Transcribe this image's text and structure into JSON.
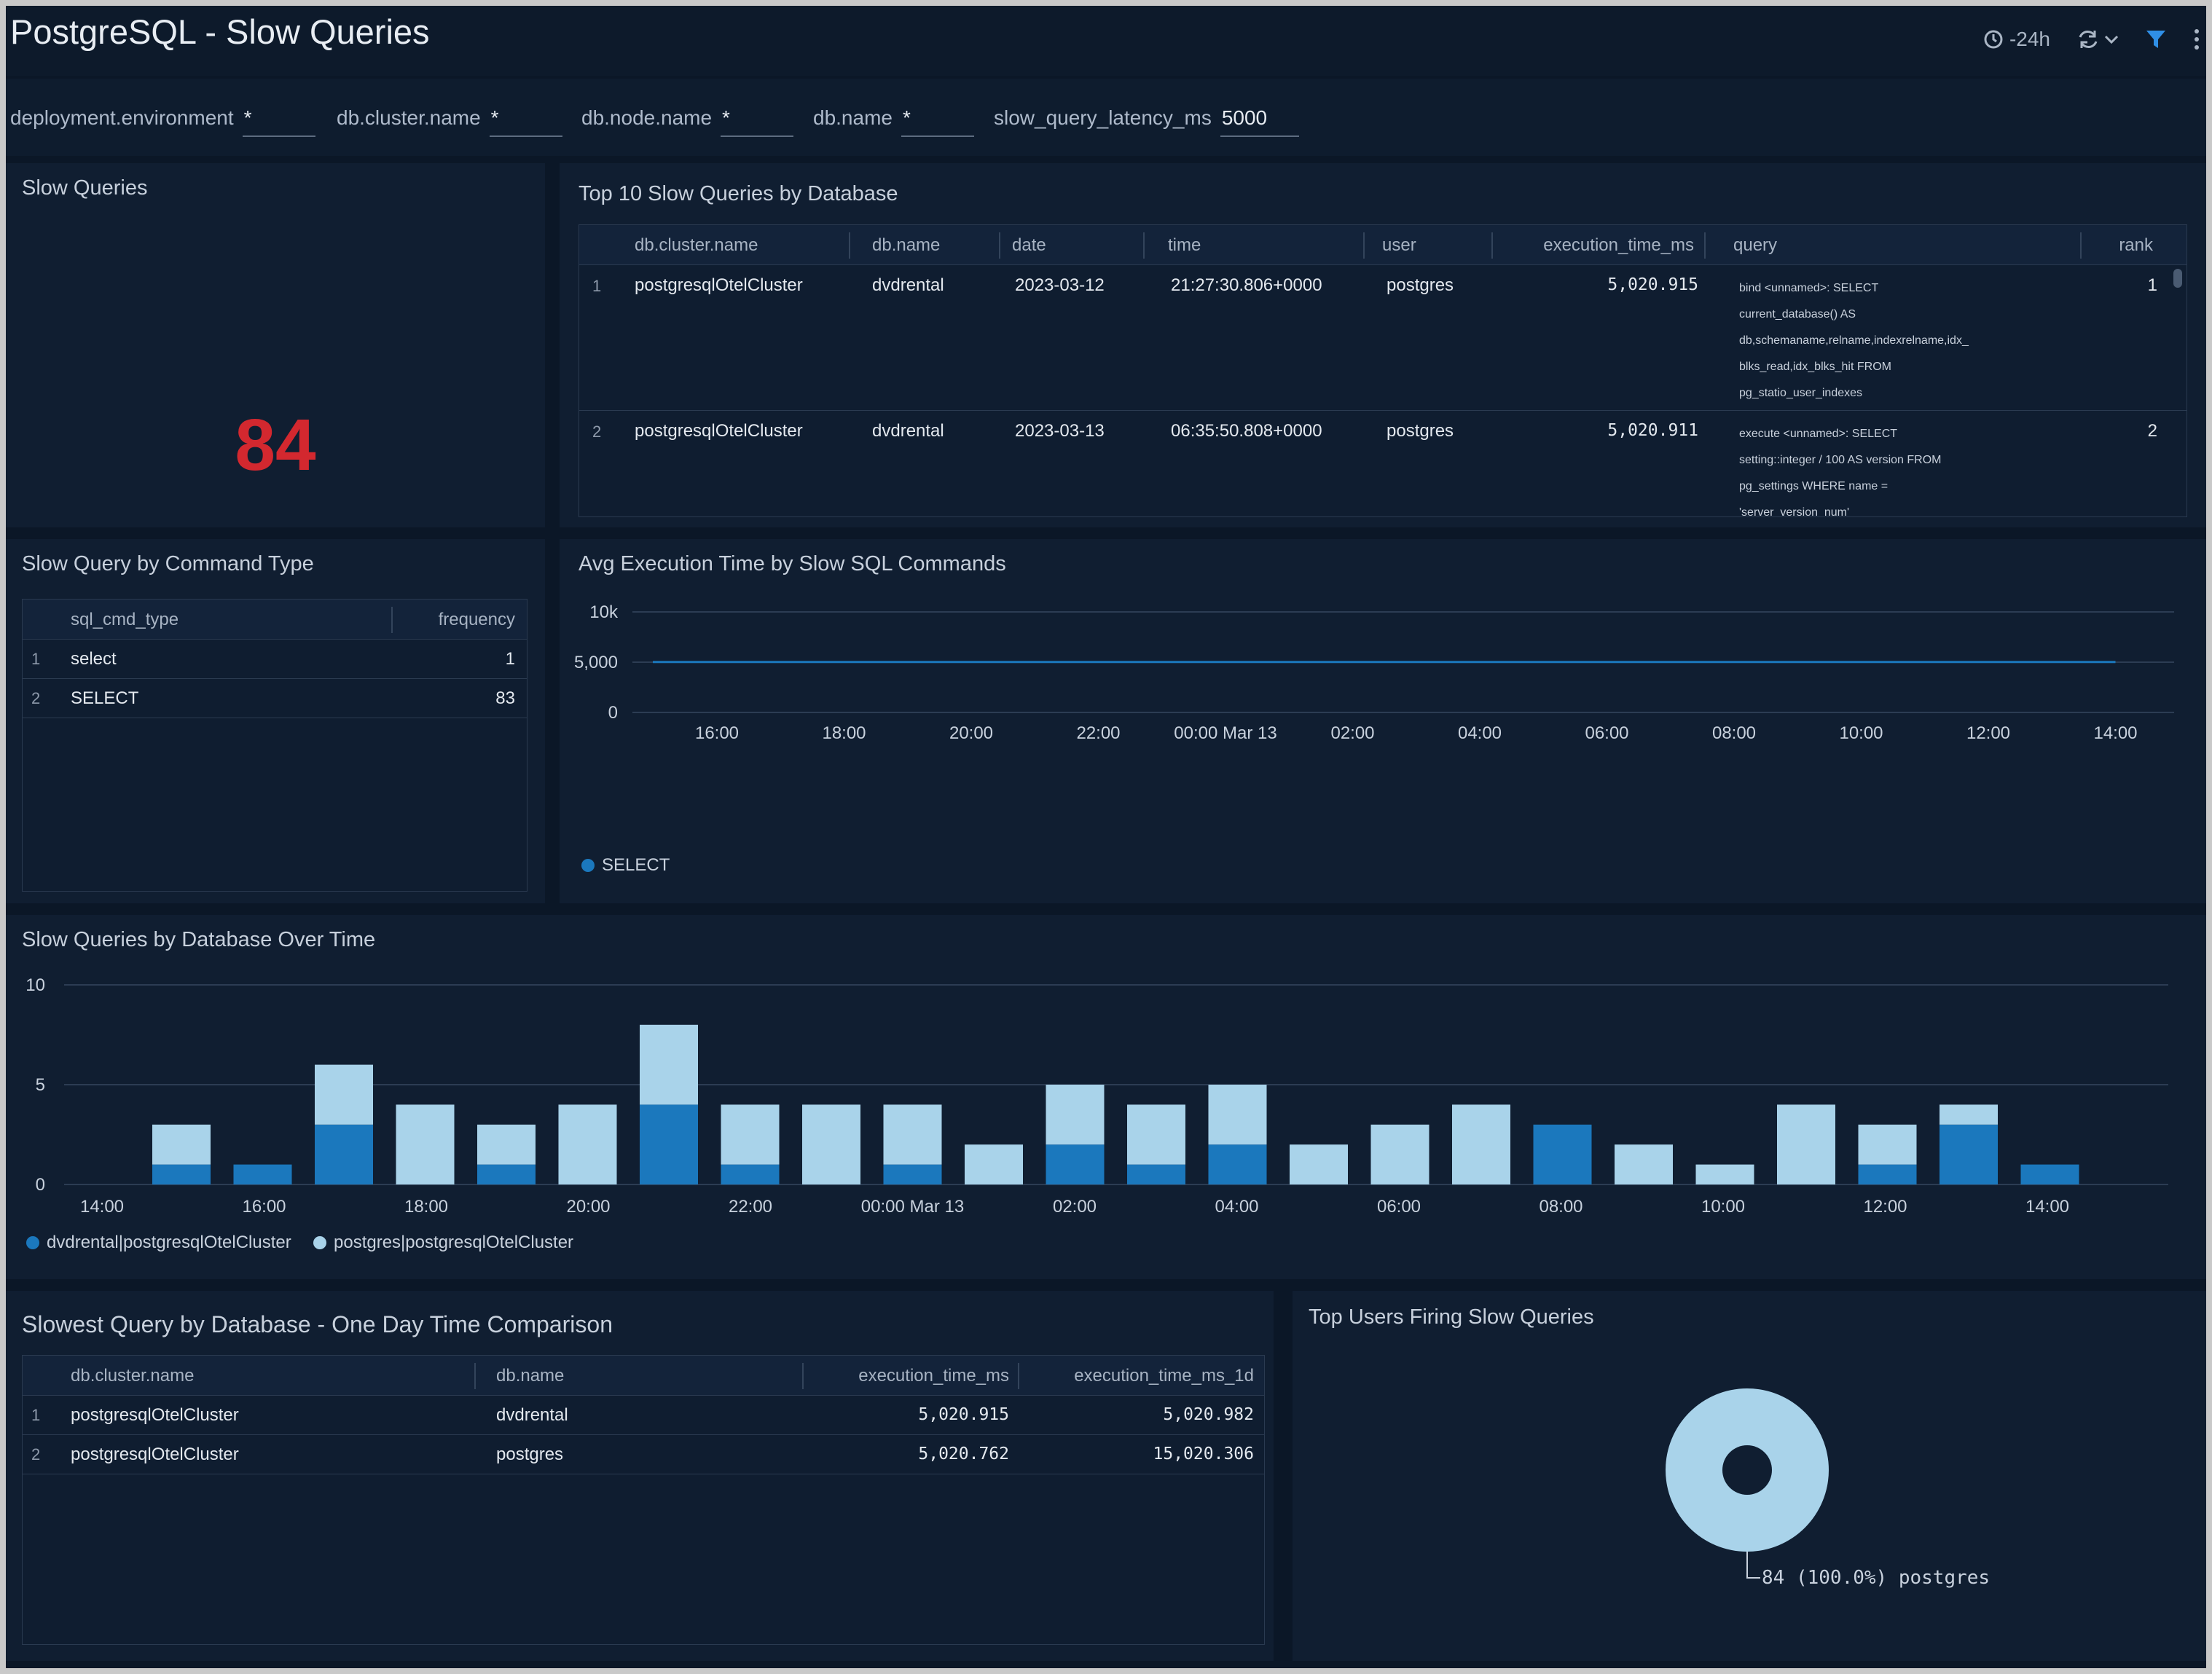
{
  "dashboard": {
    "title": "PostgreSQL - Slow Queries",
    "time_range": "-24h",
    "icons": [
      "clock-icon",
      "refresh-icon",
      "chevron-down-icon",
      "filter-icon",
      "more-vertical-icon"
    ]
  },
  "filters": [
    {
      "label": "deployment.environment",
      "value": "*"
    },
    {
      "label": "db.cluster.name",
      "value": "*"
    },
    {
      "label": "db.node.name",
      "value": "*"
    },
    {
      "label": "db.name",
      "value": "*"
    },
    {
      "label": "slow_query_latency_ms",
      "value": "5000"
    }
  ],
  "slow_queries": {
    "title": "Slow Queries",
    "value": "84",
    "color": "#d3282f"
  },
  "top_slow_queries": {
    "title": "Top 10 Slow Queries by Database",
    "columns": [
      "db.cluster.name",
      "db.name",
      "date",
      "time",
      "user",
      "execution_time_ms",
      "query",
      "rank"
    ],
    "rows": [
      {
        "n": "1",
        "cluster": "postgresqlOtelCluster",
        "db": "dvdrental",
        "date": "2023-03-12",
        "time": "21:27:30.806+0000",
        "user": "postgres",
        "exec": "5,020.915",
        "query_lines": [
          "bind <unnamed>: SELECT",
          "current_database() AS",
          "db,schemaname,relname,indexrelname,idx_",
          "blks_read,idx_blks_hit FROM",
          "pg_statio_user_indexes"
        ],
        "rank": "1"
      },
      {
        "n": "2",
        "cluster": "postgresqlOtelCluster",
        "db": "dvdrental",
        "date": "2023-03-13",
        "time": "06:35:50.808+0000",
        "user": "postgres",
        "exec": "5,020.911",
        "query_lines": [
          "execute <unnamed>: SELECT",
          "setting::integer / 100 AS version FROM",
          "pg_settings WHERE name =",
          "'server_version_num'"
        ],
        "rank": "2"
      }
    ]
  },
  "command_type": {
    "title": "Slow Query by Command Type",
    "columns": [
      "sql_cmd_type",
      "frequency"
    ],
    "rows": [
      {
        "n": "1",
        "type": "select",
        "freq": "1"
      },
      {
        "n": "2",
        "type": "SELECT",
        "freq": "83"
      }
    ]
  },
  "avg_exec_chart": {
    "title": "Avg Execution Time by Slow SQL Commands",
    "chart_data": {
      "type": "line",
      "y_ticks": [
        "0",
        "5,000",
        "10k"
      ],
      "ylim": [
        0,
        10000
      ],
      "x_ticks": [
        "16:00",
        "18:00",
        "20:00",
        "22:00",
        "00:00 Mar 13",
        "02:00",
        "04:00",
        "06:00",
        "08:00",
        "10:00",
        "12:00",
        "14:00"
      ],
      "series": [
        {
          "name": "SELECT",
          "color": "#1b78bd",
          "x": [
            "16:00",
            "14:00"
          ],
          "y": [
            5021,
            5021
          ]
        }
      ]
    }
  },
  "db_over_time": {
    "title": "Slow Queries by Database Over Time",
    "chart_data": {
      "type": "bar",
      "stacked": true,
      "y_ticks": [
        "0",
        "5",
        "10"
      ],
      "ylim": [
        0,
        10
      ],
      "x_ticks": [
        "14:00",
        "16:00",
        "18:00",
        "20:00",
        "22:00",
        "00:00 Mar 13",
        "02:00",
        "04:00",
        "06:00",
        "08:00",
        "10:00",
        "12:00",
        "14:00"
      ],
      "series": [
        {
          "name": "dvdrental|postgresqlOtelCluster",
          "color": "#1b78bd",
          "values": [
            1,
            1,
            3,
            0,
            1,
            0,
            4,
            1,
            0,
            1,
            0,
            2,
            1,
            2,
            0,
            0,
            0,
            3,
            0,
            0,
            0,
            1,
            3,
            1
          ]
        },
        {
          "name": "postgres|postgresqlOtelCluster",
          "color": "#a9d3ea",
          "values": [
            2,
            0,
            3,
            4,
            2,
            4,
            4,
            3,
            4,
            3,
            2,
            3,
            3,
            3,
            2,
            3,
            4,
            0,
            2,
            1,
            4,
            2,
            1,
            0
          ]
        }
      ]
    }
  },
  "one_day_comparison": {
    "title": "Slowest Query by Database - One Day Time Comparison",
    "columns": [
      "db.cluster.name",
      "db.name",
      "execution_time_ms",
      "execution_time_ms_1d"
    ],
    "rows": [
      {
        "n": "1",
        "cluster": "postgresqlOtelCluster",
        "db": "dvdrental",
        "exec": "5,020.915",
        "exec_1d": "5,020.982"
      },
      {
        "n": "2",
        "cluster": "postgresqlOtelCluster",
        "db": "postgres",
        "exec": "5,020.762",
        "exec_1d": "15,020.306"
      }
    ]
  },
  "top_users": {
    "title": "Top Users Firing Slow Queries",
    "chart_data": {
      "type": "pie",
      "slices": [
        {
          "label": "postgres",
          "value": 84,
          "percent": "100.0%",
          "color": "#a9d3ea"
        }
      ],
      "slice_label": "84 (100.0%) postgres"
    }
  }
}
